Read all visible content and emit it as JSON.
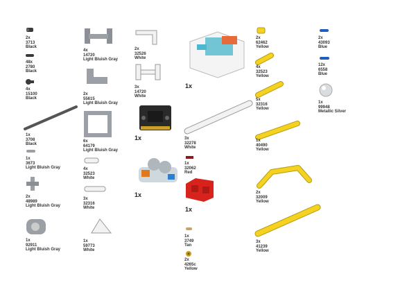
{
  "colors": {
    "black": "#3a3a3a",
    "grey": "#9aa0a6",
    "white": "#f2f2f2",
    "yellow": "#f5d21f",
    "red": "#d8231c",
    "blue": "#1f5fbf",
    "tan": "#c8a46a",
    "silver": "#d9dde0"
  },
  "parts": [
    {
      "qty": "2x",
      "num": "3713",
      "color": "Black"
    },
    {
      "qty": "48x",
      "num": "2780",
      "color": "Black"
    },
    {
      "qty": "4x",
      "num": "15100",
      "color": "Black"
    },
    {
      "qty": "1x",
      "num": "3708",
      "color": "Black"
    },
    {
      "qty": "1x",
      "num": "3673",
      "color": "Light Bluish Gray"
    },
    {
      "qty": "2x",
      "num": "48989",
      "color": "Light Bluish Gray"
    },
    {
      "qty": "1x",
      "num": "92911",
      "color": "Light Bluish Gray"
    },
    {
      "qty": "4x",
      "num": "14720",
      "color": "Light Bluish Gray"
    },
    {
      "qty": "2x",
      "num": "55615",
      "color": "Light Bluish Gray"
    },
    {
      "qty": "6x",
      "num": "64179",
      "color": "Light Bluish Gray"
    },
    {
      "qty": "4x",
      "num": "32523",
      "color": "White"
    },
    {
      "qty": "3x",
      "num": "32316",
      "color": "White"
    },
    {
      "qty": "1x",
      "num": "59773",
      "color": "White"
    },
    {
      "qty": "2x",
      "num": "32526",
      "color": "White"
    },
    {
      "qty": "3x",
      "num": "14720",
      "color": "White"
    },
    {
      "qty": "3x",
      "num": "32278",
      "color": "White"
    },
    {
      "qty": "1x",
      "num": "32062",
      "color": "Red"
    },
    {
      "qty": "1x",
      "num": "3749",
      "color": "Tan"
    },
    {
      "qty": "2x",
      "num": "4265c",
      "color": "Yellow"
    },
    {
      "qty": "2x",
      "num": "62462",
      "color": "Yellow"
    },
    {
      "qty": "4x",
      "num": "32523",
      "color": "Yellow"
    },
    {
      "qty": "5x",
      "num": "32316",
      "color": "Yellow"
    },
    {
      "qty": "1x",
      "num": "40490",
      "color": "Yellow"
    },
    {
      "qty": "2x",
      "num": "32009",
      "color": "Yellow"
    },
    {
      "qty": "3x",
      "num": "41239",
      "color": "Yellow"
    },
    {
      "qty": "2x",
      "num": "43093",
      "color": "Blue"
    },
    {
      "qty": "12x",
      "num": "6558",
      "color": "Blue"
    },
    {
      "qty": "1x",
      "num": "99948",
      "color": "Metallic Silver"
    }
  ],
  "assemblies": [
    {
      "qty": "1x"
    },
    {
      "qty": "1x"
    },
    {
      "qty": "1x"
    },
    {
      "qty": "1x"
    }
  ]
}
